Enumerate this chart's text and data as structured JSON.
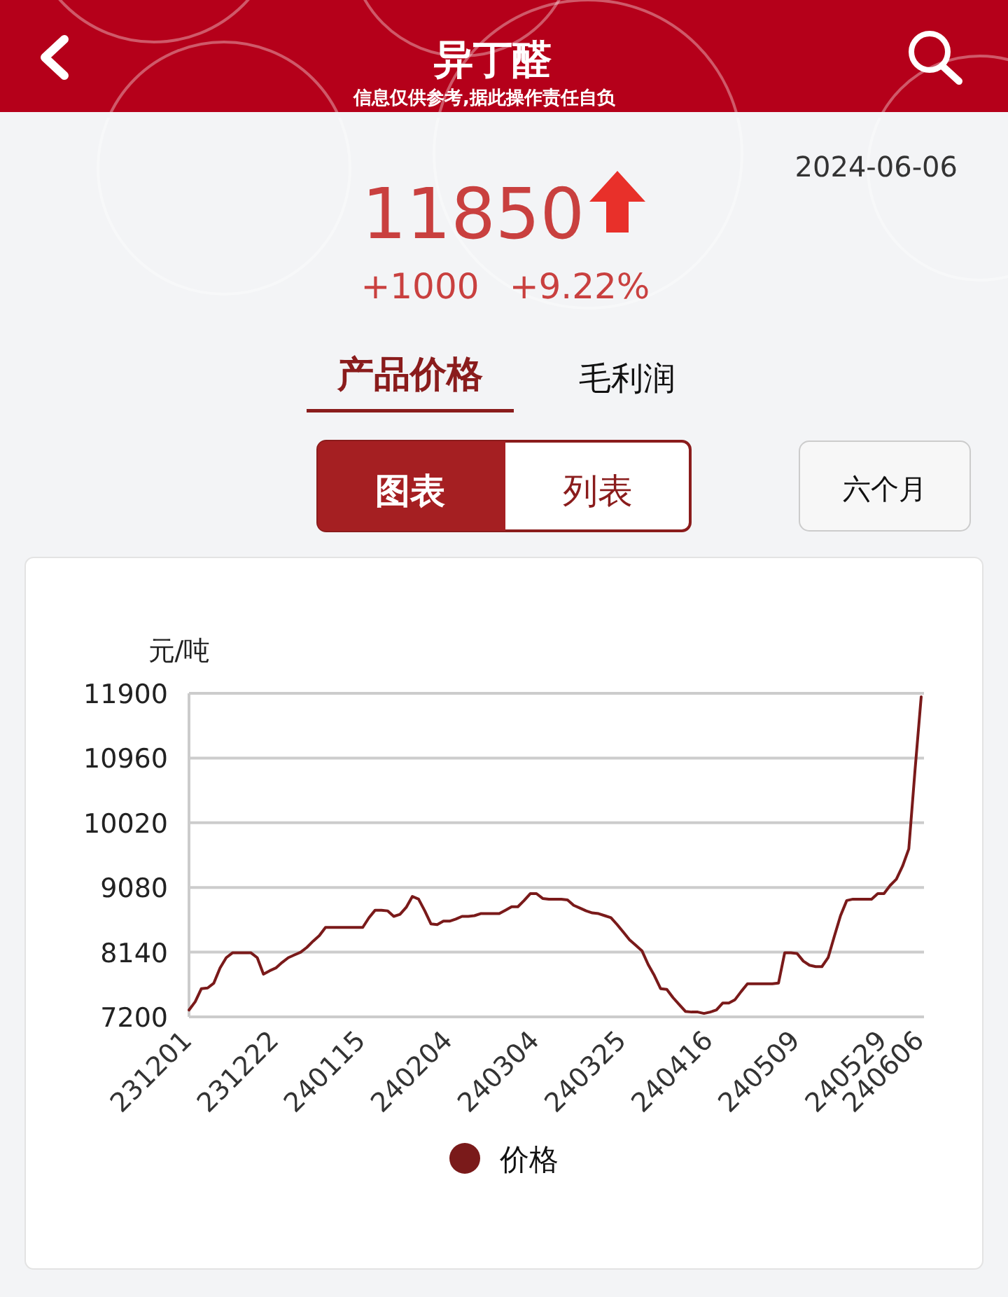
{
  "chart_data": {
    "type": "line",
    "title": "异丁醛",
    "subtitle": "信息仅供参考,据此操作责任自负",
    "ylabel": "元/吨",
    "annotations": [
      "2024-06-06",
      "11850",
      "+1000",
      "+9.22%",
      "产品价格",
      "毛利润",
      "图表",
      "列表",
      "六个月"
    ],
    "categories": [
      "231201",
      null,
      null,
      null,
      null,
      null,
      null,
      null,
      null,
      null,
      null,
      null,
      null,
      null,
      "231222",
      null,
      null,
      null,
      null,
      null,
      null,
      null,
      null,
      null,
      null,
      null,
      null,
      null,
      "240115",
      null,
      null,
      null,
      null,
      null,
      null,
      null,
      null,
      null,
      null,
      null,
      null,
      null,
      "240204",
      null,
      null,
      null,
      null,
      null,
      null,
      null,
      null,
      null,
      null,
      null,
      null,
      null,
      "240304",
      null,
      null,
      null,
      null,
      null,
      null,
      null,
      null,
      null,
      null,
      null,
      null,
      null,
      "240325",
      null,
      null,
      null,
      null,
      null,
      null,
      null,
      null,
      null,
      null,
      null,
      null,
      null,
      "240416",
      null,
      null,
      null,
      null,
      null,
      null,
      null,
      null,
      null,
      null,
      null,
      null,
      null,
      "240509",
      null,
      null,
      null,
      null,
      null,
      null,
      null,
      null,
      null,
      null,
      null,
      null,
      null,
      "240529",
      null,
      null,
      null,
      null,
      null,
      "240606"
    ],
    "series": [
      {
        "name": "价格",
        "color": "#7a1a1a",
        "values": [
          7300,
          7420,
          7610,
          7620,
          7690,
          7910,
          8060,
          8130,
          8130,
          8130,
          8130,
          8060,
          7820,
          7870,
          7910,
          7990,
          8060,
          8100,
          8140,
          8210,
          8300,
          8380,
          8500,
          8500,
          8500,
          8500,
          8500,
          8500,
          8500,
          8640,
          8750,
          8750,
          8740,
          8660,
          8690,
          8790,
          8950,
          8910,
          8740,
          8550,
          8540,
          8590,
          8590,
          8620,
          8660,
          8660,
          8670,
          8700,
          8700,
          8700,
          8700,
          8750,
          8800,
          8800,
          8890,
          8990,
          8990,
          8920,
          8910,
          8910,
          8910,
          8900,
          8820,
          8780,
          8740,
          8710,
          8700,
          8670,
          8640,
          8540,
          8430,
          8320,
          8240,
          8160,
          7960,
          7800,
          7610,
          7600,
          7480,
          7380,
          7280,
          7270,
          7270,
          7250,
          7270,
          7300,
          7400,
          7400,
          7450,
          7570,
          7680,
          7680,
          7680,
          7680,
          7680,
          7690,
          8130,
          8130,
          8120,
          8010,
          7950,
          7930,
          7930,
          8060,
          8370,
          8670,
          8890,
          8910,
          8910,
          8910,
          8910,
          8990,
          8990,
          9110,
          9200,
          9390,
          9640,
          10780,
          11850
        ]
      }
    ],
    "ylim": [
      7200,
      11900
    ],
    "yticks": [
      7200,
      8140,
      9080,
      10020,
      10960,
      11900
    ],
    "grid": "y",
    "legend": "bottom",
    "marker": "none",
    "line_style": "solid"
  }
}
